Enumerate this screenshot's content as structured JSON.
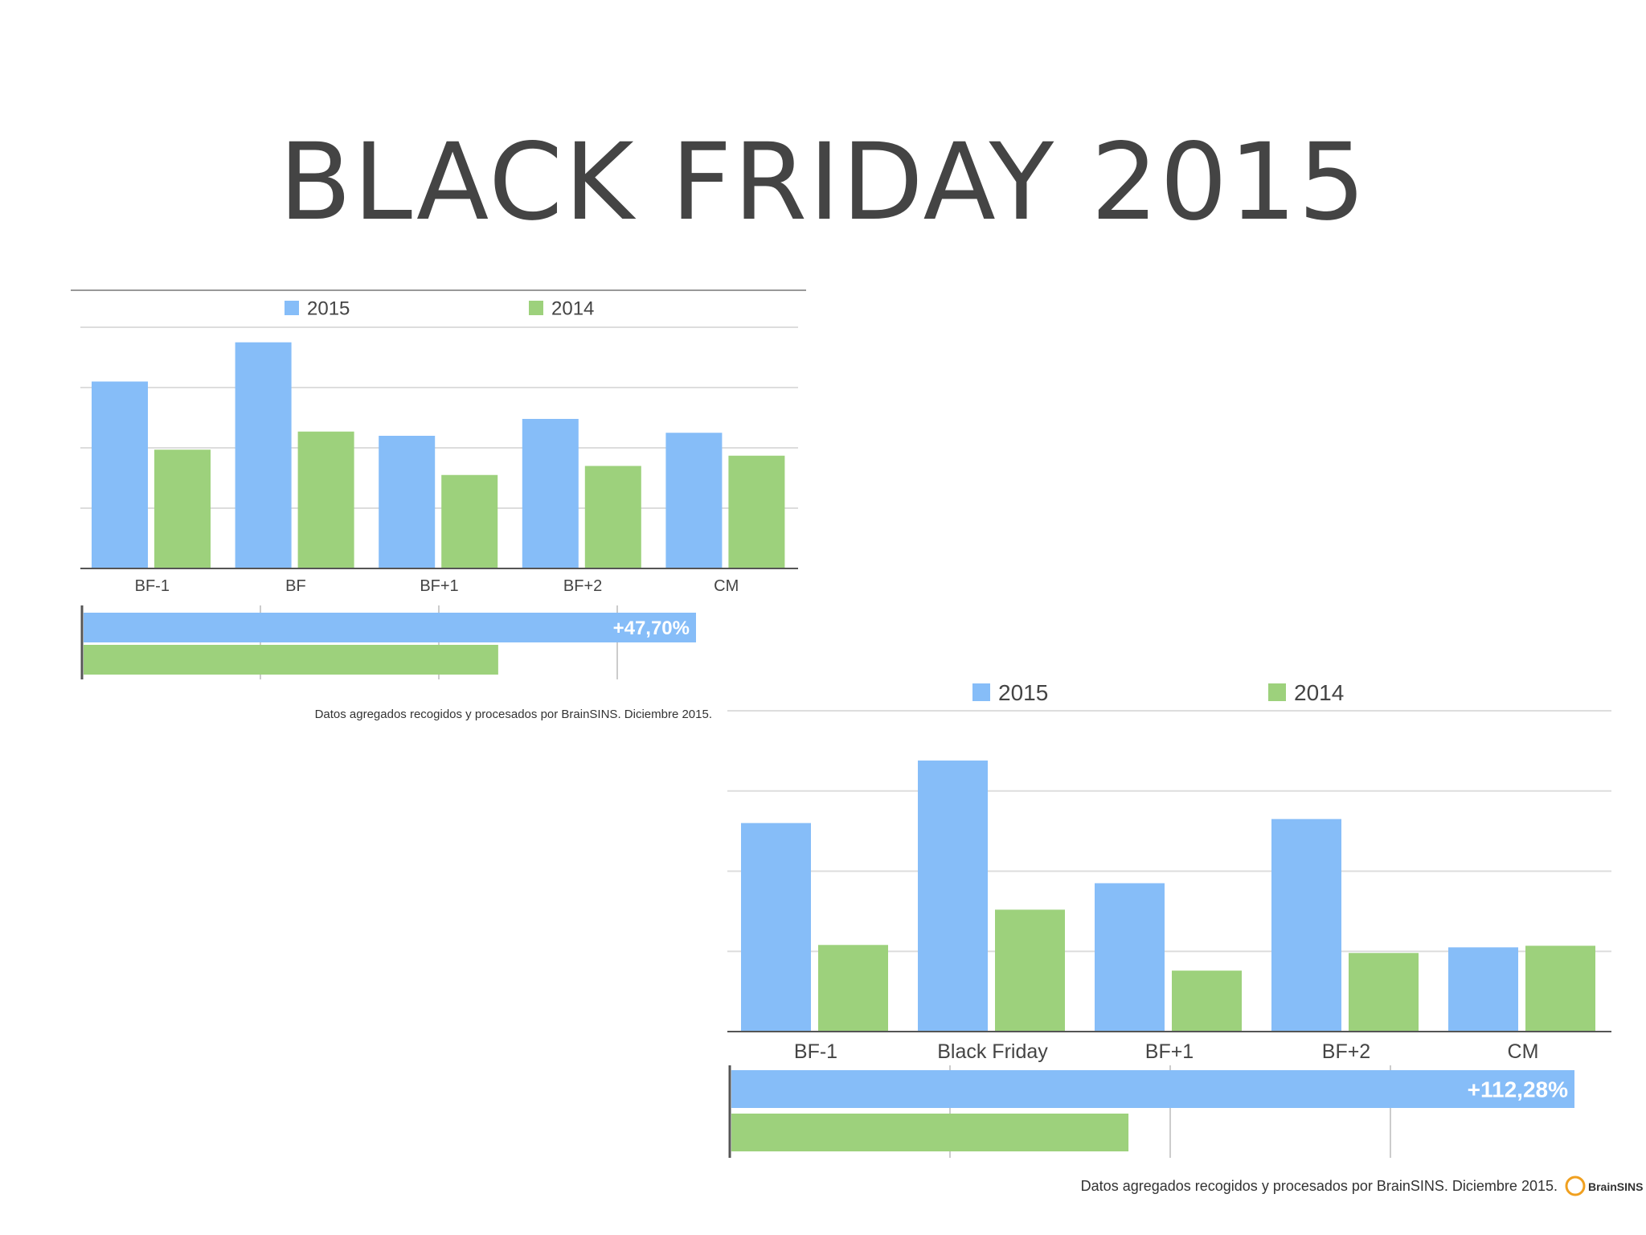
{
  "title": "BLACK FRIDAY 2015",
  "colors": {
    "series_2015": "#86bdf8",
    "series_2014": "#9dd17c",
    "grid": "#dddddd",
    "axis": "#555555",
    "title": "#444444"
  },
  "chart_data": [
    {
      "type": "bar",
      "categories": [
        "BF-1",
        "BF",
        "BF+1",
        "BF+2",
        "CM"
      ],
      "series": [
        {
          "name": "2015",
          "values": [
            3.1,
            3.75,
            2.2,
            2.48,
            2.25
          ]
        },
        {
          "name": "2014",
          "values": [
            1.97,
            2.27,
            1.55,
            1.7,
            1.87
          ]
        }
      ],
      "ylim": [
        0,
        4
      ],
      "grid": true,
      "legend": "top",
      "comparison": {
        "type": "horizontal-bar",
        "values": {
          "2015": 100,
          "2014": 67.7
        },
        "label": "+47,70%"
      },
      "footnote": "Datos agregados recogidos y procesados por BrainSINS. Diciembre 2015."
    },
    {
      "type": "bar",
      "categories": [
        "BF-1",
        "Black Friday",
        "BF+1",
        "BF+2",
        "CM"
      ],
      "series": [
        {
          "name": "2015",
          "values": [
            2.6,
            3.38,
            1.85,
            2.65,
            1.05
          ]
        },
        {
          "name": "2014",
          "values": [
            1.08,
            1.52,
            0.76,
            0.98,
            1.07
          ]
        }
      ],
      "ylim": [
        0,
        4
      ],
      "grid": true,
      "legend": "top",
      "comparison": {
        "type": "horizontal-bar",
        "values": {
          "2015": 100,
          "2014": 47.1
        },
        "label": "+112,28%"
      },
      "footnote": "Datos agregados recogidos y procesados por BrainSINS. Diciembre 2015.",
      "logo": "BrainSINS"
    }
  ]
}
